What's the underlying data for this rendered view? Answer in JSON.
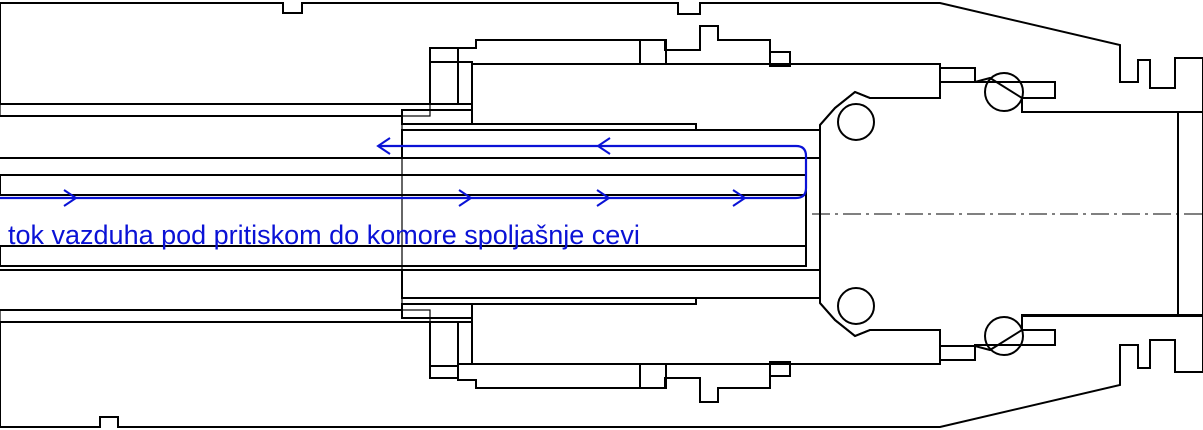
{
  "annotation": {
    "flow_label": "tok vazduha pod pritiskom do komore spoljašnje cevi",
    "color": "#0a12d6"
  },
  "drawing": {
    "line_color": "#000000",
    "background": "#ffffff"
  }
}
